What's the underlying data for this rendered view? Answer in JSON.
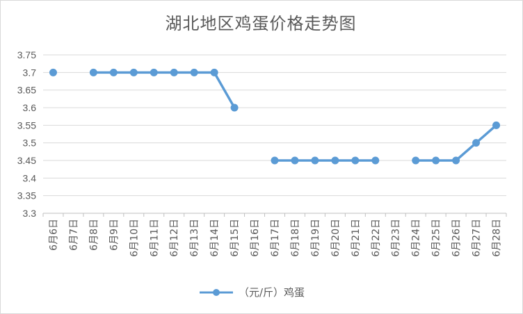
{
  "chart_data": {
    "type": "line",
    "title": "湖北地区鸡蛋价格走势图",
    "xlabel": "",
    "ylabel": "",
    "ylim": [
      3.3,
      3.75
    ],
    "yticks": [
      "3.3",
      "3.35",
      "3.4",
      "3.45",
      "3.5",
      "3.55",
      "3.6",
      "3.65",
      "3.7",
      "3.75"
    ],
    "grid": true,
    "legend_position": "bottom",
    "categories": [
      "6月6日",
      "6月7日",
      "6月8日",
      "6月9日",
      "6月10日",
      "6月11日",
      "6月12日",
      "6月13日",
      "6月14日",
      "6月15日",
      "6月16日",
      "6月17日",
      "6月18日",
      "6月19日",
      "6月20日",
      "6月21日",
      "6月22日",
      "6月23日",
      "6月24日",
      "6月25日",
      "6月26日",
      "6月27日",
      "6月28日"
    ],
    "series": [
      {
        "name": "（元/斤）鸡蛋",
        "color": "#5b9bd5",
        "values": [
          3.7,
          null,
          3.7,
          3.7,
          3.7,
          3.7,
          3.7,
          3.7,
          3.7,
          3.6,
          null,
          3.45,
          3.45,
          3.45,
          3.45,
          3.45,
          3.45,
          null,
          3.45,
          3.45,
          3.45,
          3.5,
          3.55
        ]
      }
    ]
  }
}
